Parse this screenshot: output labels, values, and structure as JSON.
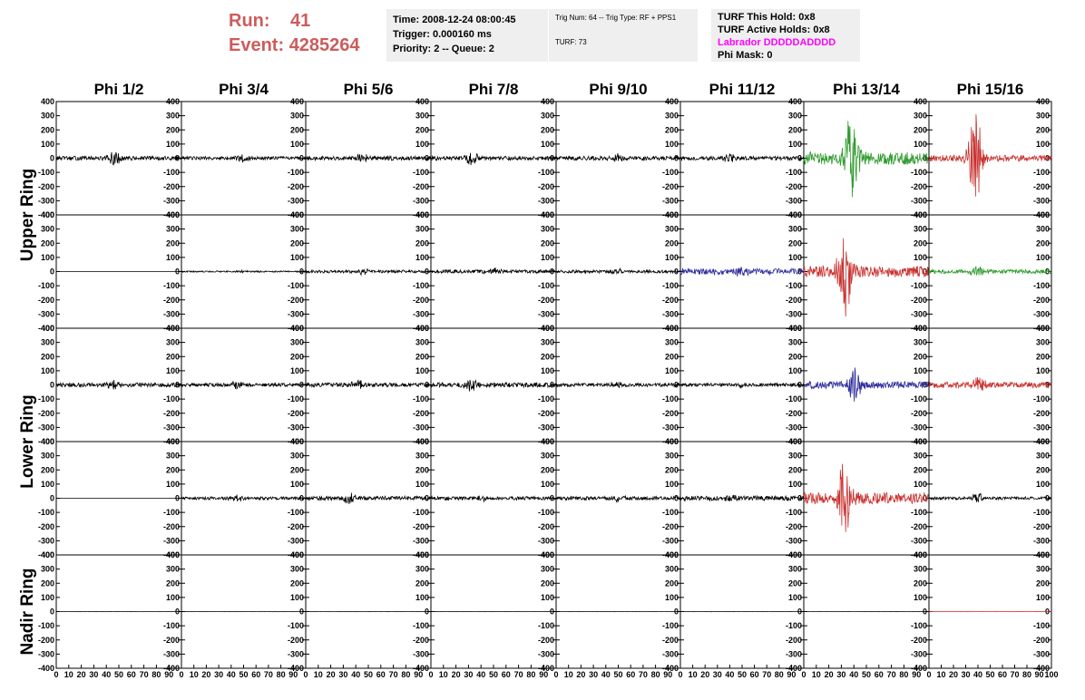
{
  "header": {
    "run_label": "Run:",
    "run_value": "41",
    "event_label": "Event:",
    "event_value": "4285264"
  },
  "info_box_1": {
    "time": "Time: 2008-12-24 08:00:45",
    "trigger": "Trigger: 0.000160 ms",
    "priority": "Priority: 2 -- Queue: 2"
  },
  "info_box_2": {
    "trig": "Trig Num: 64 -- Trig Type: RF + PPS1",
    "turf": "TURF: 73"
  },
  "info_box_3": {
    "hold": "TURF This Hold: 0x8",
    "active": "TURF Active Holds: 0x8",
    "labrador": "Labrador DDDDDADDDD",
    "phimask": "Phi Mask: 0"
  },
  "colors": {
    "black": "#000000",
    "green": "#2e9a2e",
    "red": "#c8302e",
    "blue": "#2e2e9e",
    "magenta": "#ff00ff",
    "run_text": "#cd5c5c"
  },
  "chart_data": {
    "type": "line",
    "title": "",
    "columns": [
      "Phi 1/2",
      "Phi 3/4",
      "Phi 5/6",
      "Phi 7/8",
      "Phi 9/10",
      "Phi 11/12",
      "Phi 13/14",
      "Phi 15/16"
    ],
    "row_labels": [
      {
        "label": "Upper Ring",
        "rows": [
          0,
          1
        ]
      },
      {
        "label": "Lower Ring",
        "rows": [
          2,
          3
        ]
      },
      {
        "label": "Nadir Ring",
        "rows": [
          4
        ]
      }
    ],
    "xlim": [
      0,
      100
    ],
    "ylim": [
      -400,
      400
    ],
    "y_ticks": [
      "400",
      "300",
      "200",
      "100",
      "0",
      "-100",
      "-200",
      "-300",
      "-400"
    ],
    "x_ticks": [
      "0",
      "10",
      "20",
      "30",
      "40",
      "50",
      "60",
      "70",
      "80",
      "90",
      "100"
    ],
    "grid": false,
    "panels": [
      [
        {
          "color": "black",
          "noise": 14,
          "peak_x": 47,
          "peak_amp": 45
        },
        {
          "color": "black",
          "noise": 12,
          "peak_x": 50,
          "peak_amp": 30
        },
        {
          "color": "black",
          "noise": 14,
          "peak_x": 45,
          "peak_amp": 30
        },
        {
          "color": "black",
          "noise": 14,
          "peak_x": 32,
          "peak_amp": 45
        },
        {
          "color": "black",
          "noise": 14,
          "peak_x": 50,
          "peak_amp": 25
        },
        {
          "color": "black",
          "noise": 14,
          "peak_x": 40,
          "peak_amp": 30
        },
        {
          "color": "green",
          "noise": 45,
          "peak_x": 38,
          "peak_amp": 280
        },
        {
          "color": "red",
          "noise": 22,
          "peak_x": 38,
          "peak_amp": 330
        }
      ],
      [
        {
          "color": "black",
          "noise": 0,
          "peak_x": 50,
          "peak_amp": 0
        },
        {
          "color": "black",
          "noise": 5,
          "peak_x": 50,
          "peak_amp": 8
        },
        {
          "color": "black",
          "noise": 10,
          "peak_x": 45,
          "peak_amp": 20
        },
        {
          "color": "black",
          "noise": 12,
          "peak_x": 50,
          "peak_amp": 20
        },
        {
          "color": "black",
          "noise": 10,
          "peak_x": 50,
          "peak_amp": 20
        },
        {
          "color": "blue",
          "noise": 22,
          "peak_x": 50,
          "peak_amp": 30
        },
        {
          "color": "red",
          "noise": 40,
          "peak_x": 33,
          "peak_amp": 290
        },
        {
          "color": "green",
          "noise": 14,
          "peak_x": 40,
          "peak_amp": 40
        }
      ],
      [
        {
          "color": "black",
          "noise": 14,
          "peak_x": 45,
          "peak_amp": 25
        },
        {
          "color": "black",
          "noise": 12,
          "peak_x": 45,
          "peak_amp": 25
        },
        {
          "color": "black",
          "noise": 14,
          "peak_x": 42,
          "peak_amp": 35
        },
        {
          "color": "black",
          "noise": 16,
          "peak_x": 32,
          "peak_amp": 50
        },
        {
          "color": "black",
          "noise": 12,
          "peak_x": 50,
          "peak_amp": 25
        },
        {
          "color": "black",
          "noise": 12,
          "peak_x": 50,
          "peak_amp": 20
        },
        {
          "color": "blue",
          "noise": 25,
          "peak_x": 40,
          "peak_amp": 120
        },
        {
          "color": "red",
          "noise": 20,
          "peak_x": 40,
          "peak_amp": 60
        }
      ],
      [
        {
          "color": "black",
          "noise": 0,
          "peak_x": 50,
          "peak_amp": 0
        },
        {
          "color": "black",
          "noise": 10,
          "peak_x": 45,
          "peak_amp": 20
        },
        {
          "color": "black",
          "noise": 14,
          "peak_x": 35,
          "peak_amp": 40
        },
        {
          "color": "black",
          "noise": 12,
          "peak_x": 40,
          "peak_amp": 25
        },
        {
          "color": "black",
          "noise": 12,
          "peak_x": 50,
          "peak_amp": 20
        },
        {
          "color": "black",
          "noise": 16,
          "peak_x": 40,
          "peak_amp": 25
        },
        {
          "color": "red",
          "noise": 40,
          "peak_x": 32,
          "peak_amp": 280
        },
        {
          "color": "black",
          "noise": 10,
          "peak_x": 40,
          "peak_amp": 30
        }
      ],
      [
        {
          "color": "black",
          "noise": 1,
          "peak_x": 50,
          "peak_amp": 0
        },
        {
          "color": "black",
          "noise": 1,
          "peak_x": 50,
          "peak_amp": 0
        },
        {
          "color": "black",
          "noise": 1,
          "peak_x": 50,
          "peak_amp": 0
        },
        {
          "color": "black",
          "noise": 1,
          "peak_x": 50,
          "peak_amp": 0
        },
        {
          "color": "black",
          "noise": 1,
          "peak_x": 50,
          "peak_amp": 0
        },
        {
          "color": "black",
          "noise": 1,
          "peak_x": 50,
          "peak_amp": 0
        },
        {
          "color": "black",
          "noise": 1,
          "peak_x": 50,
          "peak_amp": 0
        },
        {
          "color": "red",
          "noise": 1,
          "peak_x": 50,
          "peak_amp": 0
        }
      ]
    ]
  }
}
